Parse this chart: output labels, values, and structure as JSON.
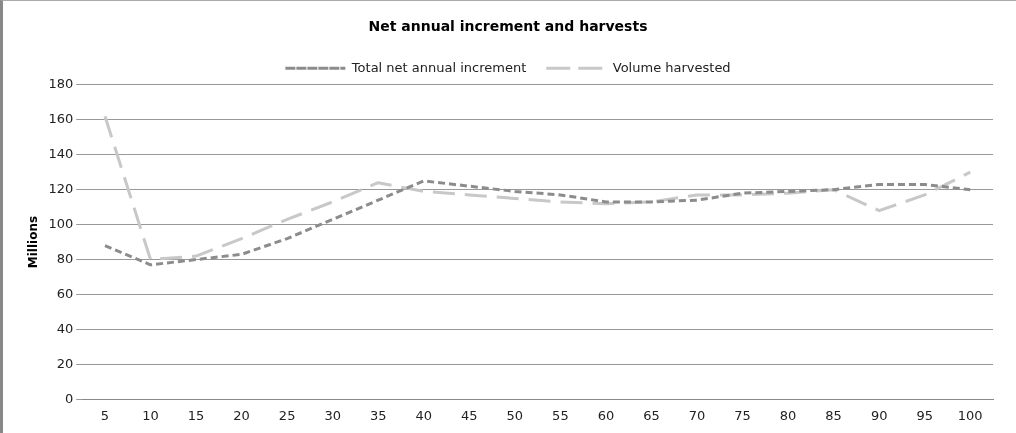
{
  "chart_data": {
    "type": "line",
    "title": "Net annual increment and harvests",
    "ylabel": "Millions",
    "categories": [
      "5",
      "10",
      "15",
      "20",
      "25",
      "30",
      "35",
      "40",
      "45",
      "50",
      "55",
      "60",
      "65",
      "70",
      "75",
      "80",
      "85",
      "90",
      "95",
      "100"
    ],
    "series": [
      {
        "name": "Total net annual increment",
        "color": "#8c8c8c",
        "line_style": "dashed",
        "values": [
          88,
          77,
          80,
          83,
          92,
          103,
          114,
          125,
          122,
          119,
          117,
          113,
          113,
          114,
          118,
          119,
          120,
          123,
          123,
          120
        ]
      },
      {
        "name": "Volume harvested",
        "color": "#c8c8c8",
        "line_style": "dashed",
        "values": [
          162,
          80,
          82,
          92,
          103,
          113,
          124,
          119,
          117,
          115,
          113,
          112,
          113,
          117,
          117,
          118,
          120,
          108,
          117,
          130
        ]
      }
    ],
    "ylim": [
      0,
      180
    ],
    "yticks": [
      0,
      20,
      40,
      60,
      80,
      100,
      120,
      140,
      160,
      180
    ],
    "grid": "y",
    "legend": "top",
    "marker": "none"
  }
}
